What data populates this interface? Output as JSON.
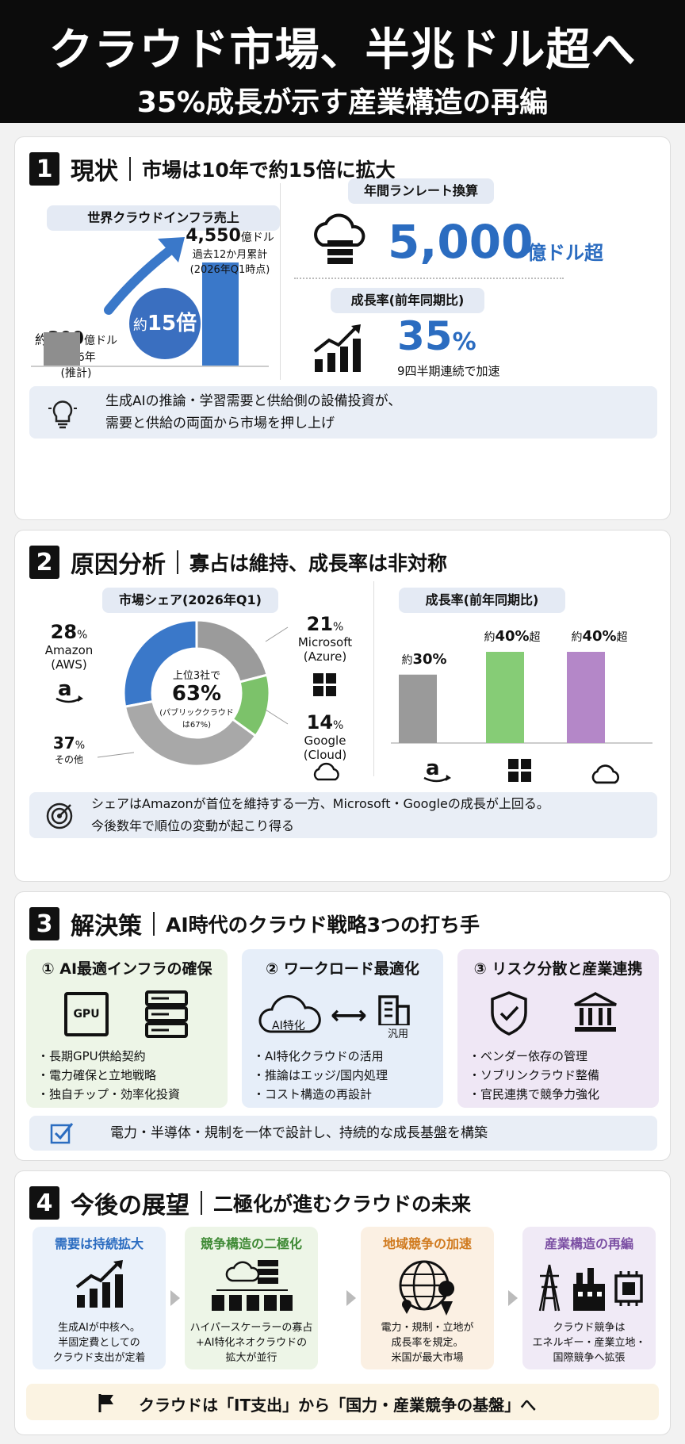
{
  "header": {
    "title": "クラウド市場、半兆ドル超へ",
    "subtitle": "35%成長が示す産業構造の再編"
  },
  "s1": {
    "num": "1",
    "title": "現状",
    "subtitle": "市場は10年で約15倍に拡大",
    "pill_left": "世界クラウドインフラ売上",
    "bar_2016": {
      "prefix": "約",
      "value": "300",
      "unit": "億ドル",
      "year": "2016年",
      "note": "(推計)",
      "amount": 300
    },
    "bar_2026": {
      "value": "4,550",
      "unit": "億ドル",
      "l1": "過去12か月累計",
      "l2": "(2026年Q1時点)",
      "amount": 4550
    },
    "growth_prefix": "約",
    "growth_value": "15倍",
    "pill_runrate": "年間ランレート換算",
    "runrate_value": "5,000",
    "runrate_unit": "億ドル超",
    "pill_growth": "成長率(前年同期比)",
    "growth_rate": "35",
    "growth_rate_unit": "%",
    "growth_rate_note": "9四半期連続で加速",
    "note_l1": "生成AIの推論・学習需要と供給側の設備投資が、",
    "note_l2": "需要と供給の両面から市場を押し上げ"
  },
  "s2": {
    "num": "2",
    "title": "原因分析",
    "subtitle": "寡占は維持、成長率は非対称",
    "pill_share": "市場シェア(2026年Q1)",
    "pill_growth": "成長率(前年同期比)",
    "donut_center": {
      "l1": "上位3社で",
      "value": "63%",
      "l2": "(パブリッククラウド",
      "l3": "は67%)"
    },
    "share": [
      {
        "pct": "28",
        "unit": "%",
        "name1": "Amazon",
        "name2": "(AWS)",
        "value": 28,
        "color": "#3a78c9"
      },
      {
        "pct": "21",
        "unit": "%",
        "name1": "Microsoft",
        "name2": "(Azure)",
        "value": 21,
        "color": "#9b9b9b"
      },
      {
        "pct": "14",
        "unit": "%",
        "name1": "Google",
        "name2": "(Cloud)",
        "value": 14,
        "color": "#7cc26a"
      },
      {
        "pct": "37",
        "unit": "%",
        "name1": "その他",
        "name2": "",
        "value": 37,
        "color": "#a8a8a8"
      }
    ],
    "growth_bars": [
      {
        "prefix": "約",
        "value": "30%",
        "suffix": "",
        "amount": 30,
        "color": "#9a9a9a"
      },
      {
        "prefix": "約",
        "value": "40%",
        "suffix": "超",
        "amount": 40,
        "color": "#86cc76"
      },
      {
        "prefix": "約",
        "value": "40%",
        "suffix": "超",
        "amount": 40,
        "color": "#b487c8"
      }
    ],
    "note_l1": "シェアはAmazonが首位を維持する一方、Microsoft・Googleの成長が上回る。",
    "note_l2": "今後数年で順位の変動が起こり得る"
  },
  "s3": {
    "num": "3",
    "title": "解決策",
    "subtitle": "AI時代のクラウド戦略3つの打ち手",
    "cards": [
      {
        "title": "① AI最適インフラの確保",
        "chip": "GPU",
        "items": [
          "・長期GPU供給契約",
          "・電力確保と立地戦略",
          "・独自チップ・効率化投資"
        ],
        "bg": "#edf5e7"
      },
      {
        "title": "② ワークロード最適化",
        "cloud_label": "AI特化",
        "bld_label": "汎用",
        "items": [
          "・AI特化クラウドの活用",
          "・推論はエッジ/国内処理",
          "・コスト構造の再設計"
        ],
        "bg": "#e6eef9"
      },
      {
        "title": "③ リスク分散と産業連携",
        "items": [
          "・ベンダー依存の管理",
          "・ソブリンクラウド整備",
          "・官民連携で競争力強化"
        ],
        "bg": "#efe7f5"
      }
    ],
    "note": "電力・半導体・規制を一体で設計し、持続的な成長基盤を構築"
  },
  "s4": {
    "num": "4",
    "title": "今後の展望",
    "subtitle": "二極化が進むクラウドの未来",
    "cols": [
      {
        "title": "需要は持続拡大",
        "desc": [
          "生成AIが中核へ。",
          "半固定費としての",
          "クラウド支出が定着"
        ],
        "bg": "#eaf1fa",
        "color": "#2b6cc0"
      },
      {
        "title": "競争構造の二極化",
        "desc": [
          "ハイパースケーラーの寡占",
          "+AI特化ネオクラウドの",
          "拡大が並行"
        ],
        "bg": "#edf5e7",
        "color": "#3f8a35"
      },
      {
        "title": "地域競争の加速",
        "desc": [
          "電力・規制・立地が",
          "成長率を規定。",
          "米国が最大市場"
        ],
        "bg": "#fbf0e3",
        "color": "#d07a1e"
      },
      {
        "title": "産業構造の再編",
        "desc": [
          "クラウド競争は",
          "エネルギー・産業立地・",
          "国際競争へ拡張"
        ],
        "bg": "#f0eaf6",
        "color": "#7b4fa3"
      }
    ],
    "banner": "クラウドは「IT支出」から「国力・産業競争の基盤」へ"
  }
}
